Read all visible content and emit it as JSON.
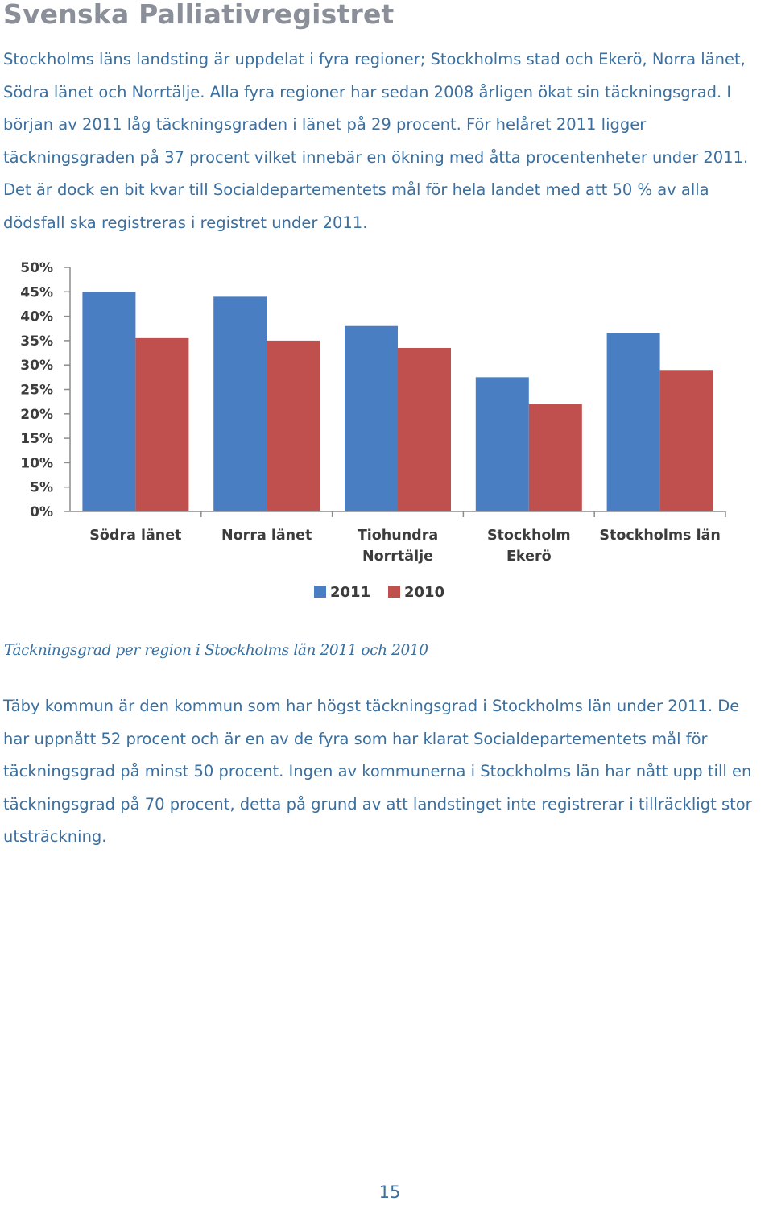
{
  "document": {
    "title": "Svenska Palliativregistret",
    "paragraph1": "Stockholms läns landsting är uppdelat i fyra regioner; Stockholms stad och Ekerö, Norra länet, Södra länet och Norrtälje. Alla fyra regioner har sedan 2008 årligen ökat sin täckningsgrad. I början av 2011 låg täckningsgraden i länet på 29 procent. För helåret 2011 ligger täckningsgraden på 37 procent vilket innebär en ökning med åtta procentenheter under 2011. Det är dock en bit kvar till Socialdepartementets mål för hela landet med att 50 % av alla dödsfall ska registreras i registret under 2011.",
    "caption": "Täckningsgrad per region i Stockholms län 2011 och 2010",
    "paragraph2": "Täby kommun är den kommun som har högst täckningsgrad i Stockholms län under 2011. De har uppnått 52 procent och är en av de fyra som har klarat Socialdepartementets mål för täckningsgrad på minst 50 procent. Ingen av kommunerna i Stockholms län har nått upp till en täckningsgrad på 70 procent, detta på grund av att landstinget inte registrerar i tillräckligt stor utsträckning.",
    "page_number": "15"
  },
  "chart_data": {
    "type": "bar",
    "categories": [
      [
        "Södra länet"
      ],
      [
        "Norra länet"
      ],
      [
        "Tiohundra",
        "Norrtälje"
      ],
      [
        "Stockholm",
        "Ekerö"
      ],
      [
        "Stockholms län"
      ]
    ],
    "series": [
      {
        "name": "2011",
        "values": [
          45,
          44,
          38,
          27.5,
          36.5
        ],
        "color": "#4a7ec3"
      },
      {
        "name": "2010",
        "values": [
          35.5,
          35,
          33.5,
          22,
          29
        ],
        "color": "#c0504d"
      }
    ],
    "ylim": [
      0,
      50
    ],
    "yticks": [
      "0%",
      "5%",
      "10%",
      "15%",
      "20%",
      "25%",
      "30%",
      "35%",
      "40%",
      "45%",
      "50%"
    ],
    "grid": false,
    "legend_position": "bottom"
  }
}
